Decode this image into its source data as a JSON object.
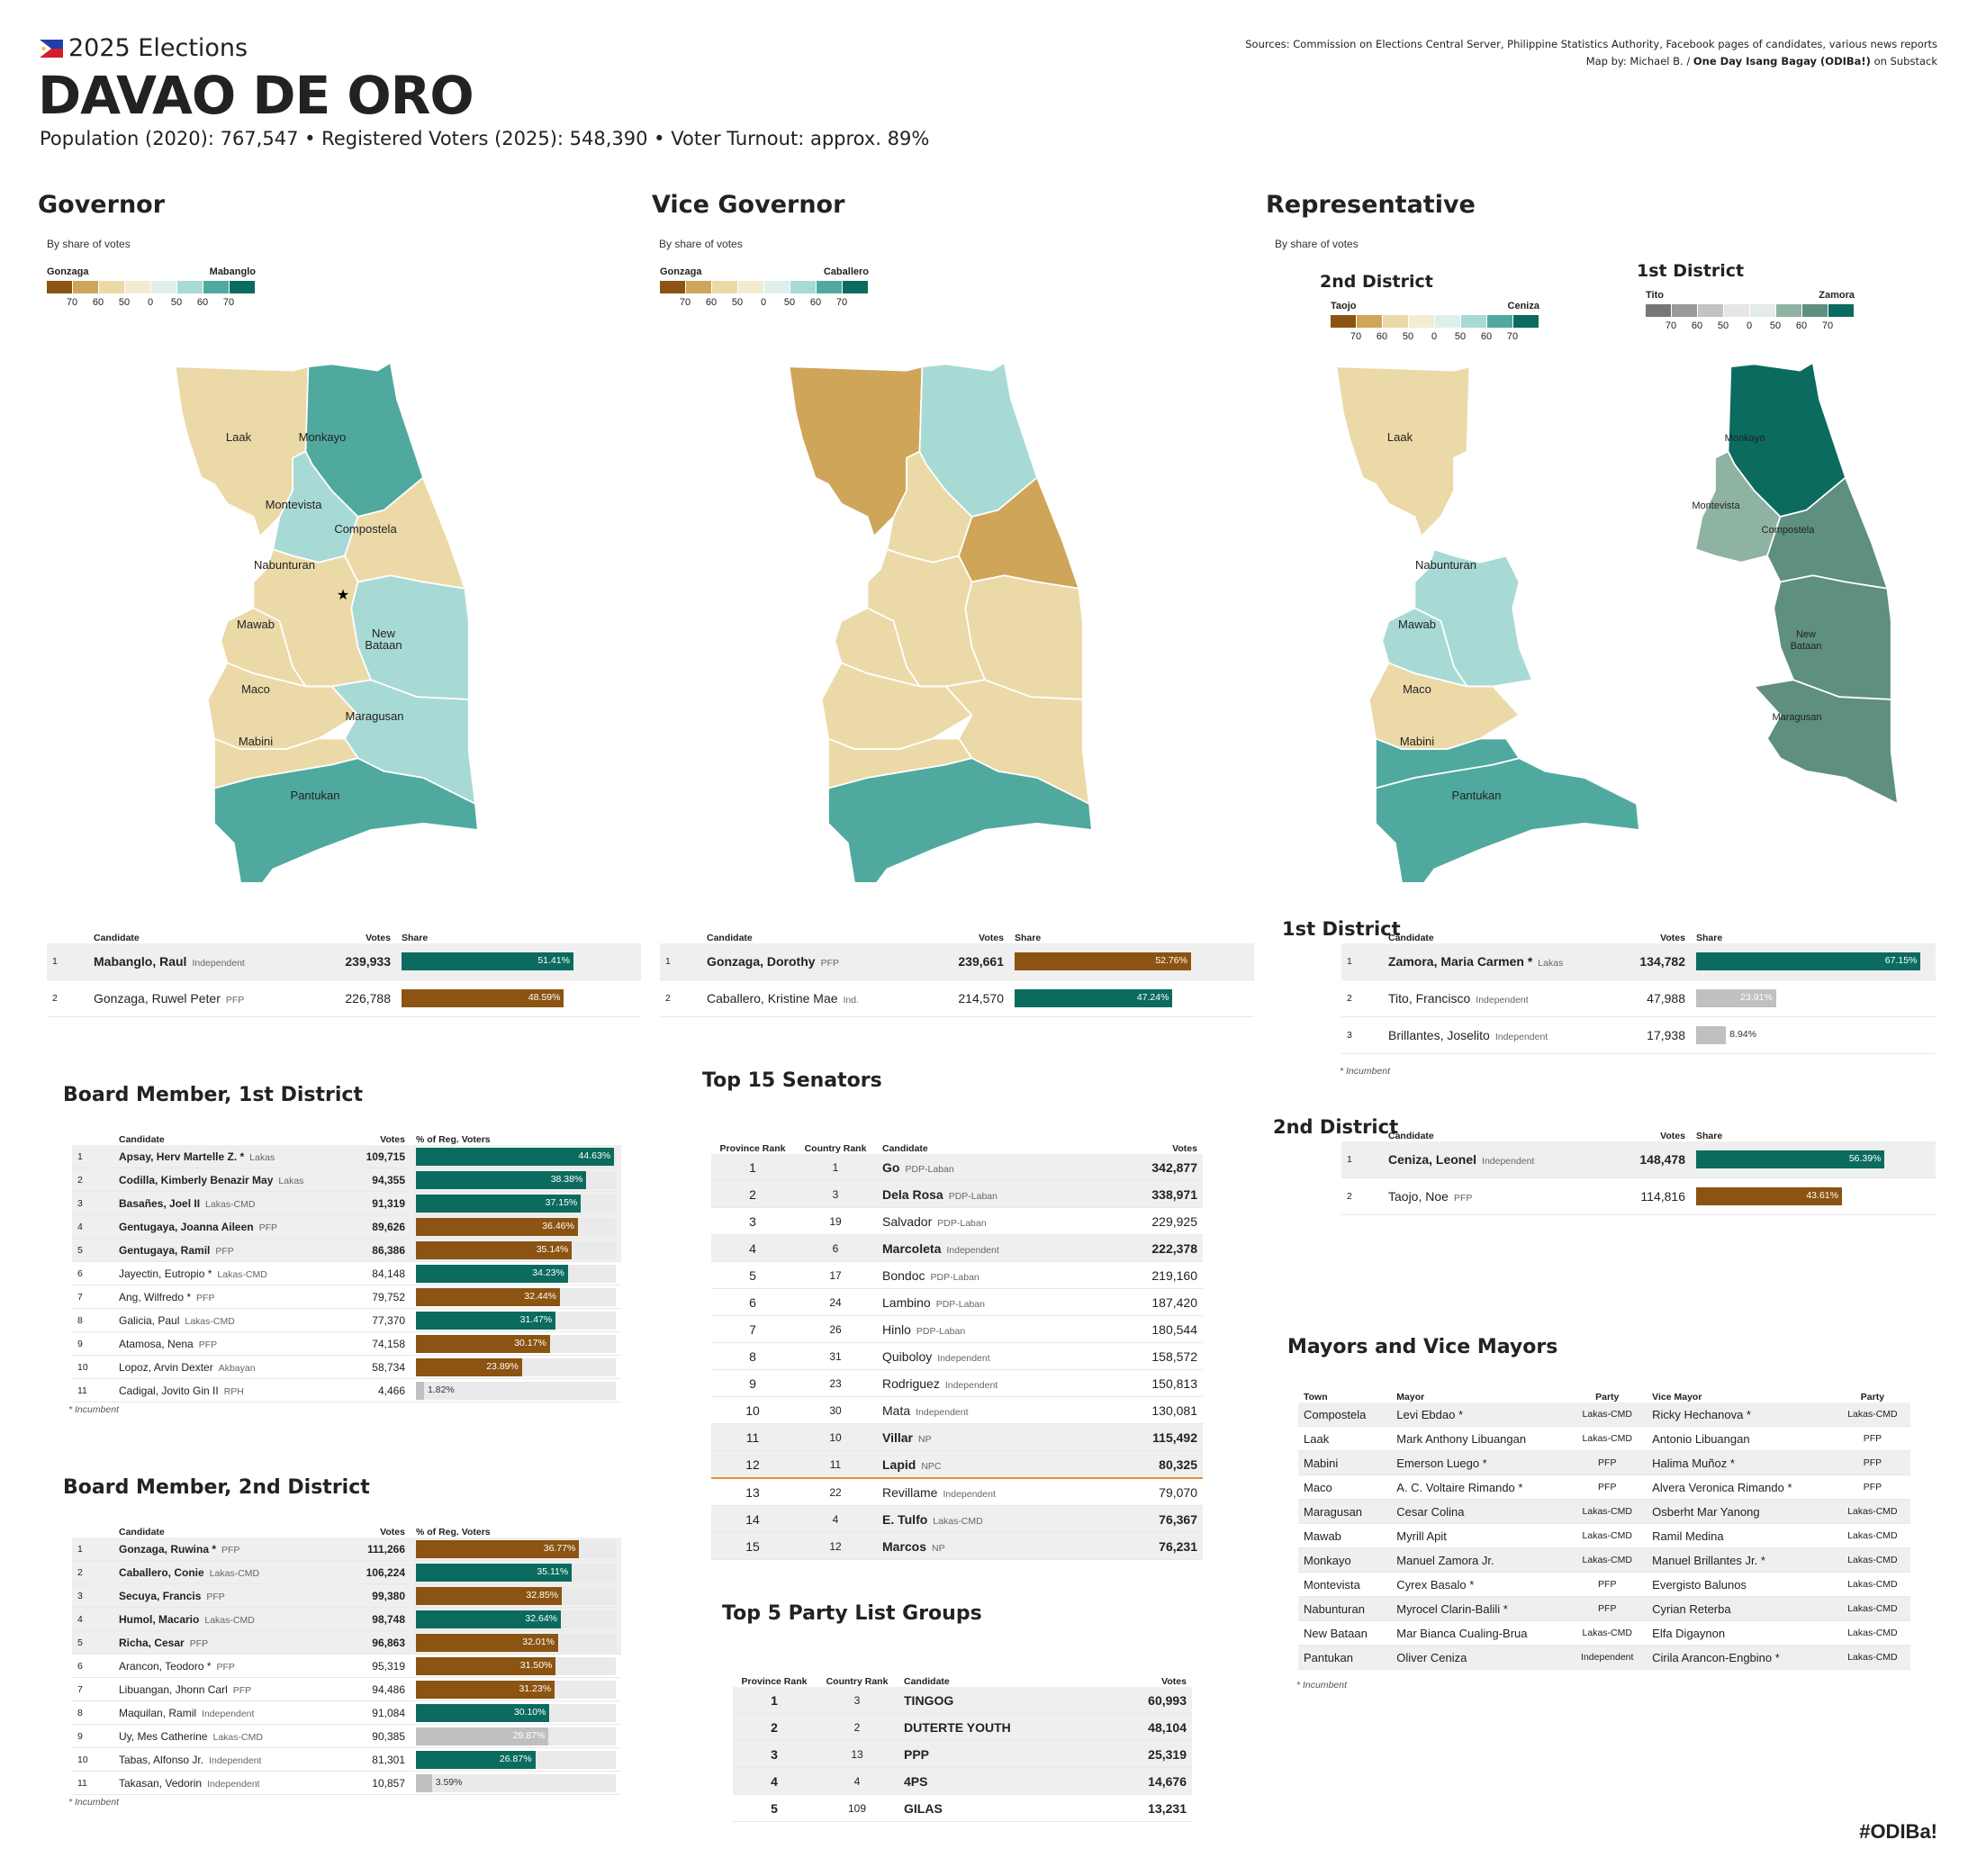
{
  "header": {
    "kicker": "2025 Elections",
    "title": "DAVAO DE ORO",
    "stats": "Population (2020): 767,547  •  Registered Voters (2025): 548,390  •  Voter Turnout: approx. 89%",
    "sources": "Sources: Commission on Elections Central Server, Philippine Statistics Authority, Facebook pages of candidates, various news reports",
    "credit_prefix": "Map by: Michael B. / ",
    "credit_bold": "One Day Isang Bagay (ODIBa!)",
    "credit_suffix": " on Substack",
    "hashtag": "#ODIBa!"
  },
  "colors": {
    "brown_dark": "#8b5412",
    "brown_mid": "#cfa55a",
    "tan": "#ecd9a8",
    "cream": "#f3ebd2",
    "teal_light": "#a8dad5",
    "teal_mid": "#50a99e",
    "teal_dark": "#0b6b5e",
    "grey_dark": "#777777",
    "grey_mid": "#9a9a9a",
    "grey_light": "#c3c3c3",
    "sage_light": "#c6d6cc",
    "sage": "#8fb3a3",
    "sage_dark": "#5e8f80",
    "bar_grey": "#c0c0c0",
    "senator_line": "#e8902a"
  },
  "legend_ticks": [
    "70",
    "60",
    "50",
    "0",
    "50",
    "60",
    "70"
  ],
  "governor": {
    "title": "Governor",
    "subtitle": "By share of votes",
    "left": "Gonzaga",
    "right": "Mabanglo",
    "columns": [
      "Candidate",
      "Votes",
      "Share"
    ],
    "rows": [
      {
        "rank": "1",
        "name": "Mabanglo, Raul",
        "party": "Independent",
        "votes": "239,933",
        "share": 51.41,
        "label": "51.41%",
        "color": "teal"
      },
      {
        "rank": "2",
        "name": "Gonzaga, Ruwel Peter",
        "party": "PFP",
        "votes": "226,788",
        "share": 48.59,
        "label": "48.59%",
        "color": "brown"
      }
    ],
    "towns": [
      "Laak",
      "Monkayo",
      "Montevista",
      "Compostela",
      "Nabunturan",
      "Mawab",
      "New Bataan",
      "Maco",
      "Maragusan",
      "Mabini",
      "Pantukan"
    ]
  },
  "vice_governor": {
    "title": "Vice Governor",
    "subtitle": "By share of votes",
    "left": "Gonzaga",
    "right": "Caballero",
    "columns": [
      "Candidate",
      "Votes",
      "Share"
    ],
    "rows": [
      {
        "rank": "1",
        "name": "Gonzaga, Dorothy",
        "party": "PFP",
        "votes": "239,661",
        "share": 52.76,
        "label": "52.76%",
        "color": "brown"
      },
      {
        "rank": "2",
        "name": "Caballero, Kristine Mae",
        "party": "Ind.",
        "votes": "214,570",
        "share": 47.24,
        "label": "47.24%",
        "color": "teal"
      }
    ]
  },
  "representative": {
    "title": "Representative",
    "subtitle": "By share of votes",
    "d2_map_title": "2nd District",
    "d2_left": "Taojo",
    "d2_right": "Ceniza",
    "d1_map_title": "1st District",
    "d1_left": "Tito",
    "d1_right": "Zamora",
    "d1": {
      "title": "1st District",
      "columns": [
        "Candidate",
        "Votes",
        "Share"
      ],
      "rows": [
        {
          "rank": "1",
          "name": "Zamora, Maria Carmen *",
          "party": "Lakas",
          "votes": "134,782",
          "share": 67.15,
          "label": "67.15%",
          "color": "teal"
        },
        {
          "rank": "2",
          "name": "Tito, Francisco",
          "party": "Independent",
          "votes": "47,988",
          "share": 23.91,
          "label": "23.91%",
          "color": "grey"
        },
        {
          "rank": "3",
          "name": "Brillantes, Joselito",
          "party": "Independent",
          "votes": "17,938",
          "share": 8.94,
          "label": "8.94%",
          "color": "grey"
        }
      ],
      "note": "* Incumbent"
    },
    "d2": {
      "title": "2nd District",
      "columns": [
        "Candidate",
        "Votes",
        "Share"
      ],
      "rows": [
        {
          "rank": "1",
          "name": "Ceniza, Leonel",
          "party": "Independent",
          "votes": "148,478",
          "share": 56.39,
          "label": "56.39%",
          "color": "teal"
        },
        {
          "rank": "2",
          "name": "Taojo, Noe",
          "party": "PFP",
          "votes": "114,816",
          "share": 43.61,
          "label": "43.61%",
          "color": "brown"
        }
      ]
    }
  },
  "board1": {
    "title": "Board Member, 1st District",
    "columns": [
      "Candidate",
      "Votes",
      "% of Reg. Voters"
    ],
    "rows": [
      {
        "rank": "1",
        "name": "Apsay, Herv Martelle Z. *",
        "party": "Lakas",
        "votes": "109,715",
        "pct": 44.63,
        "label": "44.63%",
        "color": "teal",
        "win": true
      },
      {
        "rank": "2",
        "name": "Codilla, Kimberly Benazir May",
        "party": "Lakas",
        "votes": "94,355",
        "pct": 38.38,
        "label": "38.38%",
        "color": "teal",
        "win": true
      },
      {
        "rank": "3",
        "name": "Basañes, Joel II",
        "party": "Lakas-CMD",
        "votes": "91,319",
        "pct": 37.15,
        "label": "37.15%",
        "color": "teal",
        "win": true
      },
      {
        "rank": "4",
        "name": "Gentugaya, Joanna Aileen",
        "party": "PFP",
        "votes": "89,626",
        "pct": 36.46,
        "label": "36.46%",
        "color": "brown",
        "win": true
      },
      {
        "rank": "5",
        "name": "Gentugaya, Ramil",
        "party": "PFP",
        "votes": "86,386",
        "pct": 35.14,
        "label": "35.14%",
        "color": "brown",
        "win": true
      },
      {
        "rank": "6",
        "name": "Jayectin, Eutropio *",
        "party": "Lakas-CMD",
        "votes": "84,148",
        "pct": 34.23,
        "label": "34.23%",
        "color": "teal",
        "win": false
      },
      {
        "rank": "7",
        "name": "Ang, Wilfredo *",
        "party": "PFP",
        "votes": "79,752",
        "pct": 32.44,
        "label": "32.44%",
        "color": "brown",
        "win": false
      },
      {
        "rank": "8",
        "name": "Galicia, Paul",
        "party": "Lakas-CMD",
        "votes": "77,370",
        "pct": 31.47,
        "label": "31.47%",
        "color": "teal",
        "win": false
      },
      {
        "rank": "9",
        "name": "Atamosa, Nena",
        "party": "PFP",
        "votes": "74,158",
        "pct": 30.17,
        "label": "30.17%",
        "color": "brown",
        "win": false
      },
      {
        "rank": "10",
        "name": "Lopoz, Arvin Dexter",
        "party": "Akbayan",
        "votes": "58,734",
        "pct": 23.89,
        "label": "23.89%",
        "color": "brown",
        "win": false
      },
      {
        "rank": "11",
        "name": "Cadigal, Jovito Gin II",
        "party": "RPH",
        "votes": "4,466",
        "pct": 1.82,
        "label": "1.82%",
        "color": "grey",
        "win": false
      }
    ],
    "note": "* Incumbent"
  },
  "board2": {
    "title": "Board Member, 2nd District",
    "columns": [
      "Candidate",
      "Votes",
      "% of Reg. Voters"
    ],
    "rows": [
      {
        "rank": "1",
        "name": "Gonzaga, Ruwina *",
        "party": "PFP",
        "votes": "111,266",
        "pct": 36.77,
        "label": "36.77%",
        "color": "brown",
        "win": true
      },
      {
        "rank": "2",
        "name": "Caballero, Conie",
        "party": "Lakas-CMD",
        "votes": "106,224",
        "pct": 35.11,
        "label": "35.11%",
        "color": "teal",
        "win": true
      },
      {
        "rank": "3",
        "name": "Secuya, Francis",
        "party": "PFP",
        "votes": "99,380",
        "pct": 32.85,
        "label": "32.85%",
        "color": "brown",
        "win": true
      },
      {
        "rank": "4",
        "name": "Humol, Macario",
        "party": "Lakas-CMD",
        "votes": "98,748",
        "pct": 32.64,
        "label": "32.64%",
        "color": "teal",
        "win": true
      },
      {
        "rank": "5",
        "name": "Richa, Cesar",
        "party": "PFP",
        "votes": "96,863",
        "pct": 32.01,
        "label": "32.01%",
        "color": "brown",
        "win": true
      },
      {
        "rank": "6",
        "name": "Arancon, Teodoro *",
        "party": "PFP",
        "votes": "95,319",
        "pct": 31.5,
        "label": "31.50%",
        "color": "brown",
        "win": false
      },
      {
        "rank": "7",
        "name": "Libuangan, Jhonn Carl",
        "party": "PFP",
        "votes": "94,486",
        "pct": 31.23,
        "label": "31.23%",
        "color": "brown",
        "win": false
      },
      {
        "rank": "8",
        "name": "Maquilan, Ramil",
        "party": "Independent",
        "votes": "91,084",
        "pct": 30.1,
        "label": "30.10%",
        "color": "teal",
        "win": false
      },
      {
        "rank": "9",
        "name": "Uy, Mes Catherine",
        "party": "Lakas-CMD",
        "votes": "90,385",
        "pct": 29.87,
        "label": "29.87%",
        "color": "grey",
        "win": false
      },
      {
        "rank": "10",
        "name": "Tabas, Alfonso Jr.",
        "party": "Independent",
        "votes": "81,301",
        "pct": 26.87,
        "label": "26.87%",
        "color": "teal",
        "win": false
      },
      {
        "rank": "11",
        "name": "Takasan, Vedorin",
        "party": "Independent",
        "votes": "10,857",
        "pct": 3.59,
        "label": "3.59%",
        "color": "grey",
        "win": false
      }
    ],
    "note": "* Incumbent"
  },
  "senators": {
    "title": "Top 15 Senators",
    "columns": [
      "Province Rank",
      "Country Rank",
      "Candidate",
      "Votes"
    ],
    "rows": [
      {
        "prov": "1",
        "country": "1",
        "name": "Go",
        "party": "PDP-Laban",
        "votes": "342,877",
        "win": true
      },
      {
        "prov": "2",
        "country": "3",
        "name": "Dela Rosa",
        "party": "PDP-Laban",
        "votes": "338,971",
        "win": true
      },
      {
        "prov": "3",
        "country": "19",
        "name": "Salvador",
        "party": "PDP-Laban",
        "votes": "229,925",
        "win": false
      },
      {
        "prov": "4",
        "country": "6",
        "name": "Marcoleta",
        "party": "Independent",
        "votes": "222,378",
        "win": true
      },
      {
        "prov": "5",
        "country": "17",
        "name": "Bondoc",
        "party": "PDP-Laban",
        "votes": "219,160",
        "win": false
      },
      {
        "prov": "6",
        "country": "24",
        "name": "Lambino",
        "party": "PDP-Laban",
        "votes": "187,420",
        "win": false
      },
      {
        "prov": "7",
        "country": "26",
        "name": "Hinlo",
        "party": "PDP-Laban",
        "votes": "180,544",
        "win": false
      },
      {
        "prov": "8",
        "country": "31",
        "name": "Quiboloy",
        "party": "Independent",
        "votes": "158,572",
        "win": false
      },
      {
        "prov": "9",
        "country": "23",
        "name": "Rodriguez",
        "party": "Independent",
        "votes": "150,813",
        "win": false
      },
      {
        "prov": "10",
        "country": "30",
        "name": "Mata",
        "party": "Independent",
        "votes": "130,081",
        "win": false
      },
      {
        "prov": "11",
        "country": "10",
        "name": "Villar",
        "party": "NP",
        "votes": "115,492",
        "win": true
      },
      {
        "prov": "12",
        "country": "11",
        "name": "Lapid",
        "party": "NPC",
        "votes": "80,325",
        "win": true
      },
      {
        "prov": "13",
        "country": "22",
        "name": "Revillame",
        "party": "Independent",
        "votes": "79,070",
        "win": false
      },
      {
        "prov": "14",
        "country": "4",
        "name": "E. Tulfo",
        "party": "Lakas-CMD",
        "votes": "76,367",
        "win": true
      },
      {
        "prov": "15",
        "country": "12",
        "name": "Marcos",
        "party": "NP",
        "votes": "76,231",
        "win": true
      }
    ]
  },
  "partylist": {
    "title": "Top 5 Party List Groups",
    "columns": [
      "Province Rank",
      "Country Rank",
      "Candidate",
      "Votes"
    ],
    "rows": [
      {
        "prov": "1",
        "country": "3",
        "name": "TINGOG",
        "votes": "60,993"
      },
      {
        "prov": "2",
        "country": "2",
        "name": "DUTERTE YOUTH",
        "votes": "48,104"
      },
      {
        "prov": "3",
        "country": "13",
        "name": "PPP",
        "votes": "25,319"
      },
      {
        "prov": "4",
        "country": "4",
        "name": "4PS",
        "votes": "14,676"
      },
      {
        "prov": "5",
        "country": "109",
        "name": "GILAS",
        "votes": "13,231"
      }
    ]
  },
  "mayors": {
    "title": "Mayors and Vice Mayors",
    "columns": [
      "Town",
      "Mayor",
      "Party",
      "Vice Mayor",
      "Party"
    ],
    "rows": [
      {
        "town": "Compostela",
        "mayor": "Levi Ebdao *",
        "mparty": "Lakas-CMD",
        "vice": "Ricky Hechanova *",
        "vparty": "Lakas-CMD"
      },
      {
        "town": "Laak",
        "mayor": "Mark Anthony Libuangan",
        "mparty": "Lakas-CMD",
        "vice": "Antonio Libuangan",
        "vparty": "PFP"
      },
      {
        "town": "Mabini",
        "mayor": "Emerson Luego *",
        "mparty": "PFP",
        "vice": "Halima Muñoz *",
        "vparty": "PFP"
      },
      {
        "town": "Maco",
        "mayor": "A. C. Voltaire Rimando *",
        "mparty": "PFP",
        "vice": "Alvera Veronica Rimando *",
        "vparty": "PFP"
      },
      {
        "town": "Maragusan",
        "mayor": "Cesar Colina",
        "mparty": "Lakas-CMD",
        "vice": "Osberht Mar Yanong",
        "vparty": "Lakas-CMD"
      },
      {
        "town": "Mawab",
        "mayor": "Myrill Apit",
        "mparty": "Lakas-CMD",
        "vice": "Ramil Medina",
        "vparty": "Lakas-CMD"
      },
      {
        "town": "Monkayo",
        "mayor": "Manuel Zamora Jr.",
        "mparty": "Lakas-CMD",
        "vice": "Manuel Brillantes Jr. *",
        "vparty": "Lakas-CMD"
      },
      {
        "town": "Montevista",
        "mayor": "Cyrex Basalo *",
        "mparty": "PFP",
        "vice": "Evergisto Balunos",
        "vparty": "Lakas-CMD"
      },
      {
        "town": "Nabunturan",
        "mayor": "Myrocel Clarin-Balili *",
        "mparty": "PFP",
        "vice": "Cyrian Reterba",
        "vparty": "Lakas-CMD"
      },
      {
        "town": "New Bataan",
        "mayor": "Mar Bianca Cualing-Brua",
        "mparty": "Lakas-CMD",
        "vice": "Elfa Digaynon",
        "vparty": "Lakas-CMD"
      },
      {
        "town": "Pantukan",
        "mayor": "Oliver Ceniza",
        "mparty": "Independent",
        "vice": "Cirila Arancon-Engbino *",
        "vparty": "Lakas-CMD"
      }
    ],
    "note": "* Incumbent"
  },
  "map_names": {
    "Laak": "Laak",
    "Monkayo": "Monkayo",
    "Montevista": "Montevista",
    "Compostela": "Compostela",
    "Nabunturan": "Nabunturan",
    "Mawab": "Mawab",
    "NewBataan1": "New",
    "NewBataan2": "Bataan",
    "Maco": "Maco",
    "Maragusan": "Maragusan",
    "Mabini": "Mabini",
    "Pantukan": "Pantukan"
  },
  "chart_data": [
    {
      "type": "bar",
      "title": "Governor",
      "categories": [
        "Mabanglo, Raul",
        "Gonzaga, Ruwel Peter"
      ],
      "values": [
        51.41,
        48.59
      ],
      "votes": [
        239933,
        226788
      ]
    },
    {
      "type": "bar",
      "title": "Vice Governor",
      "categories": [
        "Gonzaga, Dorothy",
        "Caballero, Kristine Mae"
      ],
      "values": [
        52.76,
        47.24
      ],
      "votes": [
        239661,
        214570
      ]
    },
    {
      "type": "bar",
      "title": "1st District",
      "categories": [
        "Zamora, Maria Carmen *",
        "Tito, Francisco",
        "Brillantes, Joselito"
      ],
      "values": [
        67.15,
        23.91,
        8.94
      ],
      "votes": [
        134782,
        47988,
        17938
      ]
    },
    {
      "type": "bar",
      "title": "2nd District",
      "categories": [
        "Ceniza, Leonel",
        "Taojo, Noe"
      ],
      "values": [
        56.39,
        43.61
      ],
      "votes": [
        148478,
        114816
      ]
    },
    {
      "type": "bar",
      "title": "Board Member, 1st District",
      "values": [
        44.63,
        38.38,
        37.15,
        36.46,
        35.14,
        34.23,
        32.44,
        31.47,
        30.17,
        23.89,
        1.82
      ]
    },
    {
      "type": "bar",
      "title": "Board Member, 2nd District",
      "values": [
        36.77,
        35.11,
        32.85,
        32.64,
        32.01,
        31.5,
        31.23,
        30.1,
        29.87,
        26.87,
        3.59
      ]
    },
    {
      "type": "table",
      "title": "Top 15 Senators"
    },
    {
      "type": "table",
      "title": "Top 5 Party List Groups"
    },
    {
      "type": "table",
      "title": "Mayors and Vice Mayors"
    }
  ]
}
